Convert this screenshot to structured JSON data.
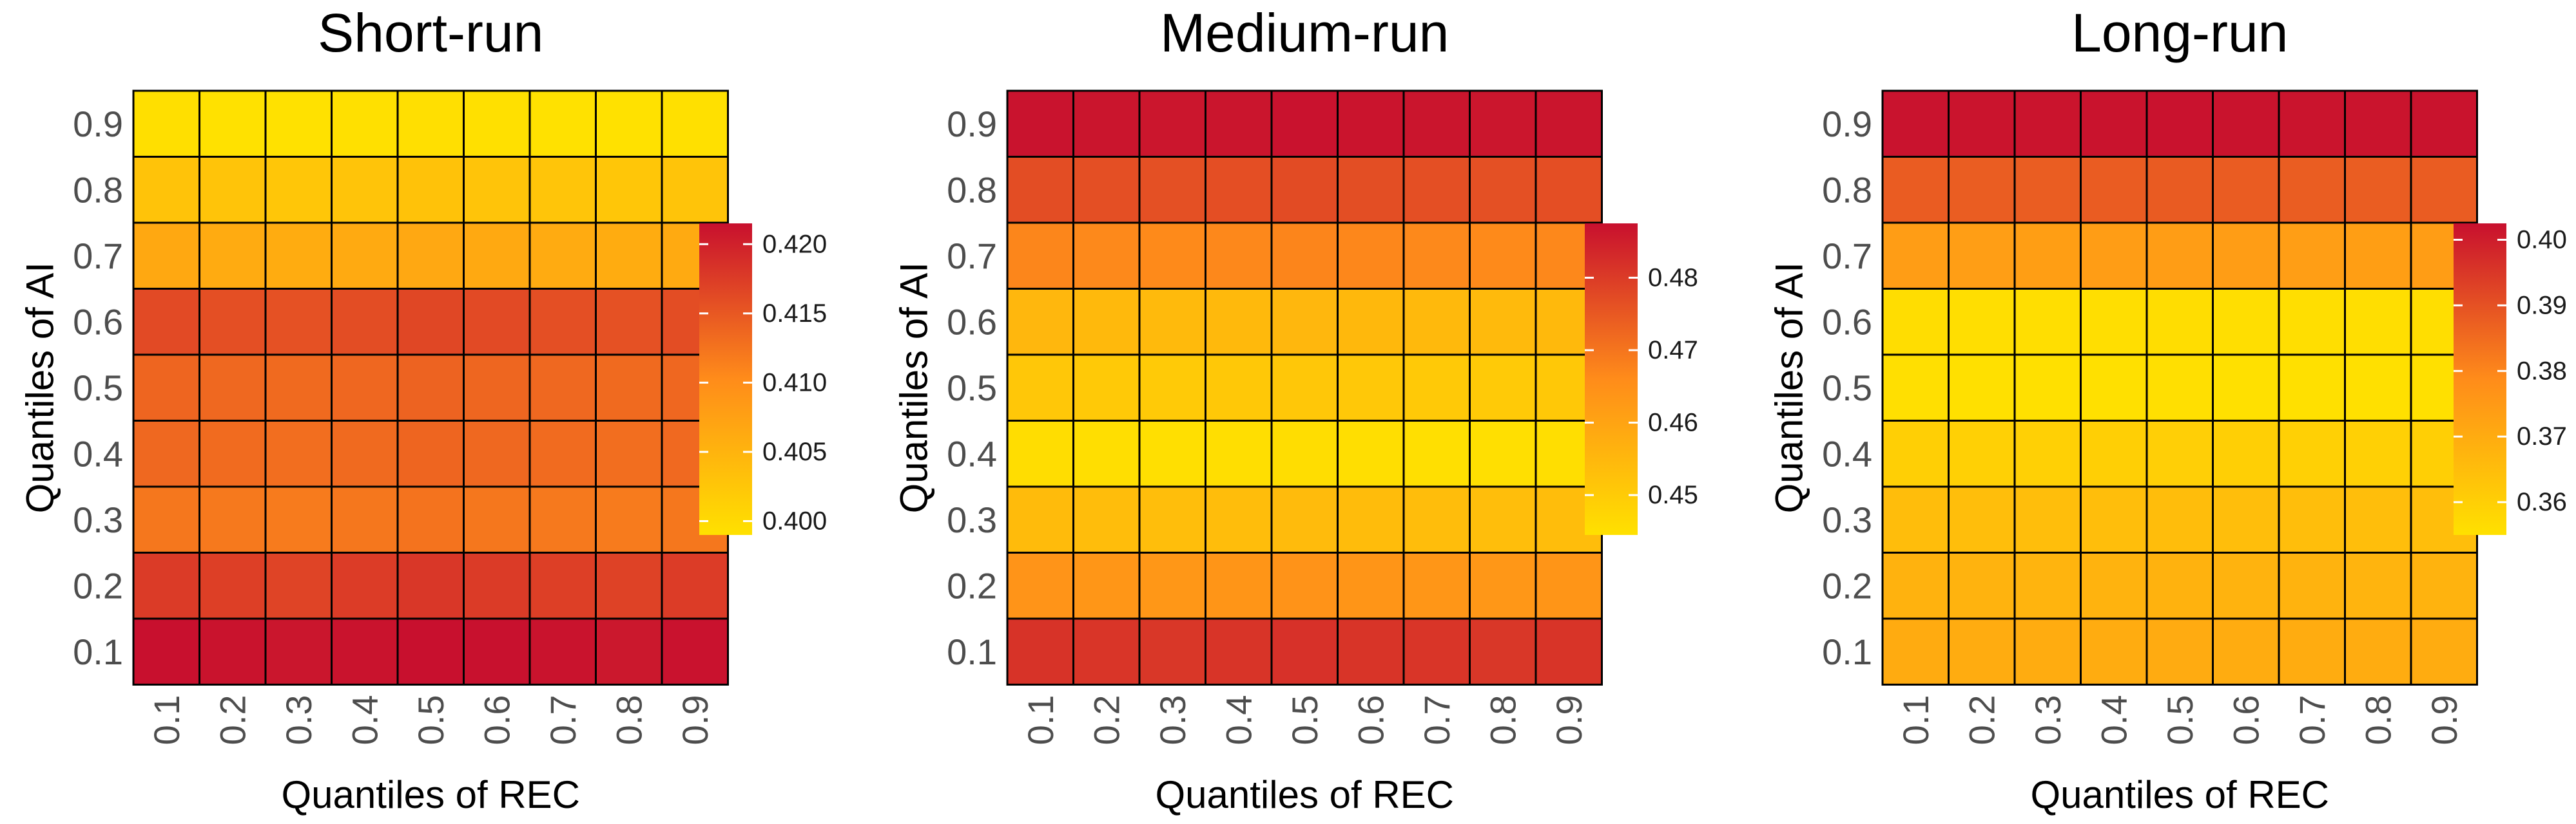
{
  "colors": {
    "low": "#FFE100",
    "mid": "#FF8C1A",
    "high": "#C8102E",
    "cell_border": "#000000",
    "background": "#ffffff"
  },
  "chart_data": [
    {
      "type": "heatmap",
      "title": "Short-run",
      "xlabel": "Quantiles of REC",
      "ylabel": "Quantiles of AI",
      "x_categories": [
        "0.1",
        "0.2",
        "0.3",
        "0.4",
        "0.5",
        "0.6",
        "0.7",
        "0.8",
        "0.9"
      ],
      "y_categories": [
        "0.1",
        "0.2",
        "0.3",
        "0.4",
        "0.5",
        "0.6",
        "0.7",
        "0.8",
        "0.9"
      ],
      "values": [
        [
          0.4215,
          0.4212,
          0.421,
          0.4212,
          0.4218,
          0.4214,
          0.4212,
          0.4208,
          0.4213
        ],
        [
          0.4176,
          0.4172,
          0.4168,
          0.4175,
          0.418,
          0.4176,
          0.4172,
          0.417,
          0.4175
        ],
        [
          0.4122,
          0.412,
          0.4118,
          0.4122,
          0.4125,
          0.4122,
          0.412,
          0.4118,
          0.4122
        ],
        [
          0.4135,
          0.4132,
          0.413,
          0.4133,
          0.4138,
          0.4135,
          0.4132,
          0.413,
          0.4134
        ],
        [
          0.4138,
          0.4135,
          0.4133,
          0.4136,
          0.414,
          0.4137,
          0.4135,
          0.4133,
          0.4136
        ],
        [
          0.4162,
          0.4158,
          0.4156,
          0.416,
          0.4165,
          0.4162,
          0.4158,
          0.4156,
          0.416
        ],
        [
          0.4065,
          0.4062,
          0.406,
          0.4063,
          0.4066,
          0.4064,
          0.4062,
          0.406,
          0.4063
        ],
        [
          0.403,
          0.4028,
          0.4026,
          0.4029,
          0.4031,
          0.4029,
          0.4027,
          0.4026,
          0.4029
        ],
        [
          0.3992,
          0.399,
          0.3988,
          0.3991,
          0.3993,
          0.3991,
          0.3989,
          0.3988,
          0.3991
        ]
      ],
      "legend": {
        "min": 0.399,
        "max": 0.4215,
        "ticks": [
          0.4,
          0.405,
          0.41,
          0.415,
          0.42
        ],
        "tick_labels": [
          "0.400",
          "0.405",
          "0.410",
          "0.415",
          "0.420"
        ]
      }
    },
    {
      "type": "heatmap",
      "title": "Medium-run",
      "xlabel": "Quantiles of REC",
      "ylabel": "Quantiles of AI",
      "x_categories": [
        "0.1",
        "0.2",
        "0.3",
        "0.4",
        "0.5",
        "0.6",
        "0.7",
        "0.8",
        "0.9"
      ],
      "y_categories": [
        "0.1",
        "0.2",
        "0.3",
        "0.4",
        "0.5",
        "0.6",
        "0.7",
        "0.8",
        "0.9"
      ],
      "values": [
        [
          0.4815,
          0.481,
          0.4808,
          0.4812,
          0.4818,
          0.4813,
          0.481,
          0.4808,
          0.4812
        ],
        [
          0.464,
          0.4635,
          0.4632,
          0.4636,
          0.4642,
          0.4638,
          0.4635,
          0.4632,
          0.4636
        ],
        [
          0.454,
          0.4536,
          0.4534,
          0.4537,
          0.4542,
          0.4538,
          0.4536,
          0.4534,
          0.4537
        ],
        [
          0.4455,
          0.4452,
          0.445,
          0.4453,
          0.4456,
          0.4453,
          0.4451,
          0.445,
          0.4453
        ],
        [
          0.451,
          0.4506,
          0.4504,
          0.4507,
          0.4511,
          0.4508,
          0.4506,
          0.4504,
          0.4507
        ],
        [
          0.455,
          0.4546,
          0.4544,
          0.4547,
          0.4551,
          0.4548,
          0.4546,
          0.4544,
          0.4547
        ],
        [
          0.467,
          0.4666,
          0.4664,
          0.4667,
          0.4672,
          0.4668,
          0.4666,
          0.4664,
          0.4667
        ],
        [
          0.477,
          0.4766,
          0.4764,
          0.4767,
          0.4772,
          0.4768,
          0.4766,
          0.4764,
          0.4767
        ],
        [
          0.487,
          0.4866,
          0.4864,
          0.4867,
          0.4872,
          0.4868,
          0.4866,
          0.4864,
          0.4867
        ]
      ],
      "legend": {
        "min": 0.4445,
        "max": 0.4875,
        "ticks": [
          0.45,
          0.46,
          0.47,
          0.48
        ],
        "tick_labels": [
          "0.45",
          "0.46",
          "0.47",
          "0.48"
        ]
      }
    },
    {
      "type": "heatmap",
      "title": "Long-run",
      "xlabel": "Quantiles of REC",
      "ylabel": "Quantiles of AI",
      "x_categories": [
        "0.1",
        "0.2",
        "0.3",
        "0.4",
        "0.5",
        "0.6",
        "0.7",
        "0.8",
        "0.9"
      ],
      "y_categories": [
        "0.1",
        "0.2",
        "0.3",
        "0.4",
        "0.5",
        "0.6",
        "0.7",
        "0.8",
        "0.9"
      ],
      "values": [
        [
          0.37,
          0.3698,
          0.3697,
          0.3699,
          0.3701,
          0.3699,
          0.3698,
          0.3697,
          0.3699
        ],
        [
          0.368,
          0.3678,
          0.3677,
          0.3679,
          0.3681,
          0.3679,
          0.3678,
          0.3677,
          0.3679
        ],
        [
          0.365,
          0.3648,
          0.3647,
          0.3649,
          0.3651,
          0.3649,
          0.3648,
          0.3647,
          0.3649
        ],
        [
          0.36,
          0.3598,
          0.3597,
          0.3599,
          0.3601,
          0.3599,
          0.3598,
          0.3597,
          0.3599
        ],
        [
          0.3555,
          0.3553,
          0.3552,
          0.3554,
          0.3556,
          0.3554,
          0.3553,
          0.3552,
          0.3554
        ],
        [
          0.356,
          0.3558,
          0.3557,
          0.3559,
          0.3561,
          0.3559,
          0.3558,
          0.3557,
          0.3559
        ],
        [
          0.374,
          0.3738,
          0.3737,
          0.3739,
          0.3741,
          0.3739,
          0.3738,
          0.3737,
          0.3739
        ],
        [
          0.388,
          0.3878,
          0.3877,
          0.3879,
          0.3881,
          0.3879,
          0.3878,
          0.3877,
          0.3879
        ],
        [
          0.402,
          0.4018,
          0.4017,
          0.4019,
          0.4022,
          0.4019,
          0.4018,
          0.4017,
          0.4019
        ]
      ],
      "legend": {
        "min": 0.355,
        "max": 0.4025,
        "ticks": [
          0.36,
          0.37,
          0.38,
          0.39,
          0.4
        ],
        "tick_labels": [
          "0.36",
          "0.37",
          "0.38",
          "0.39",
          "0.40"
        ]
      }
    }
  ]
}
